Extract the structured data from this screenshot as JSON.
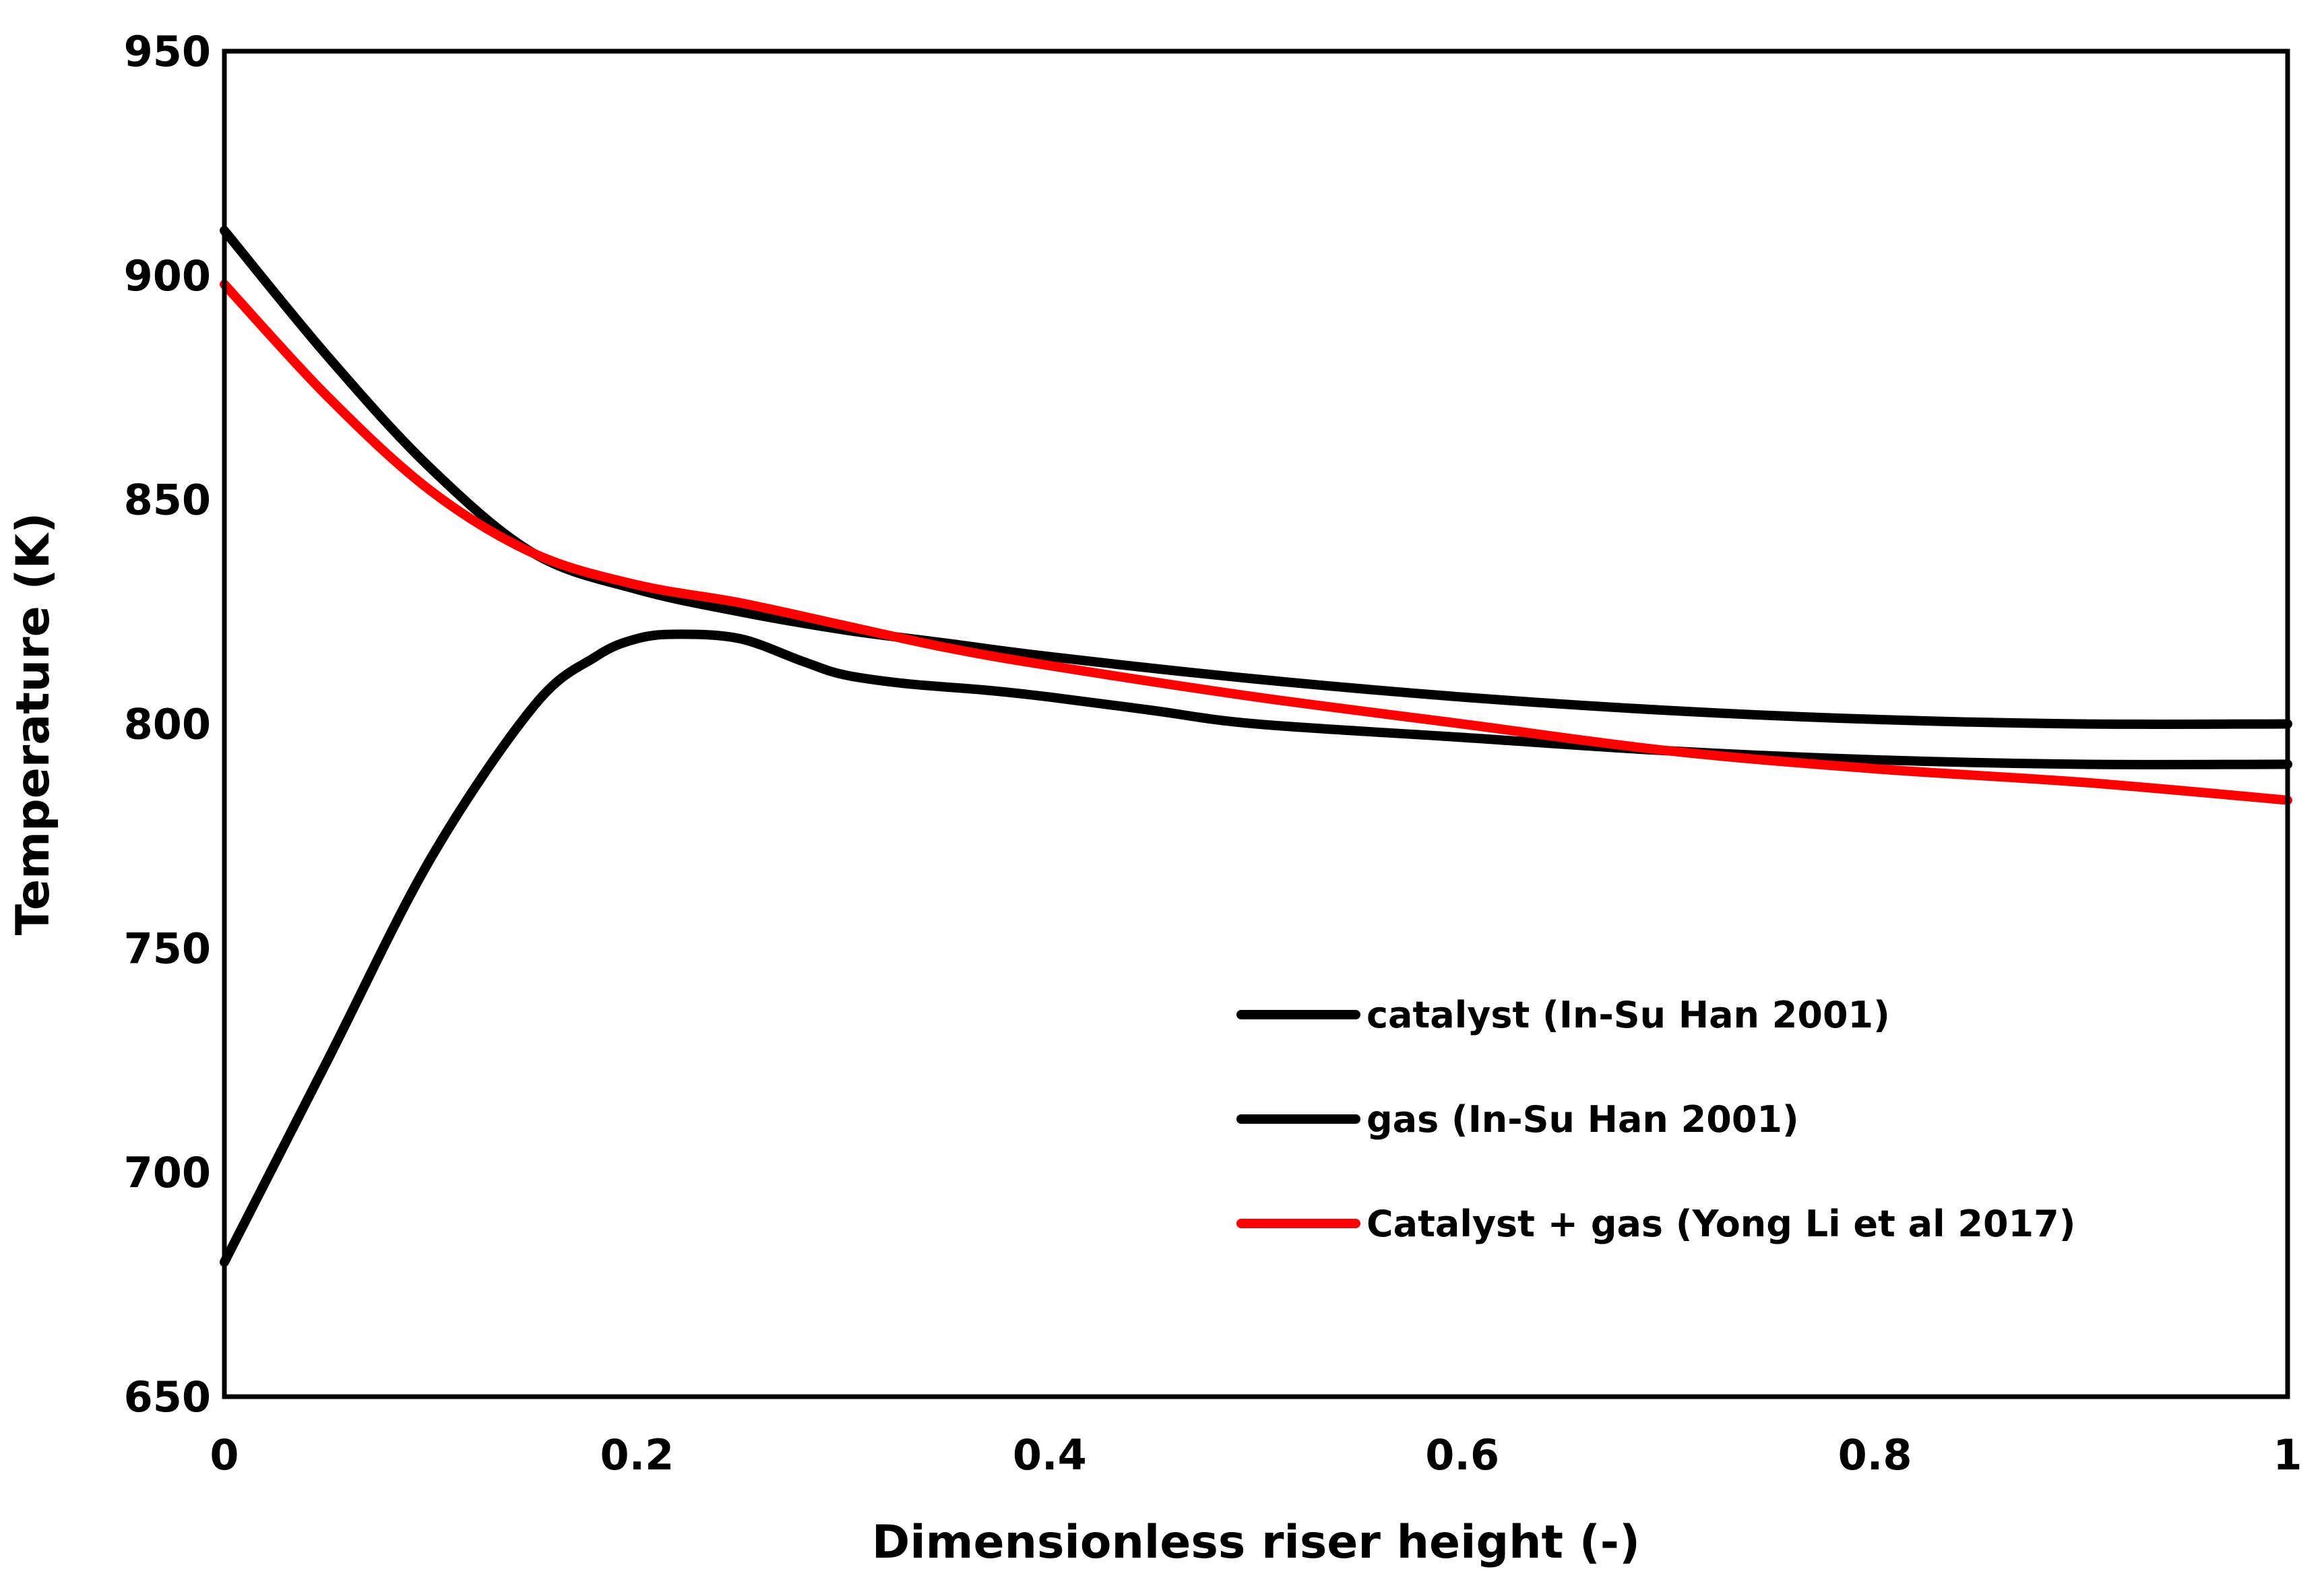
{
  "chart_data": {
    "type": "line",
    "title": "",
    "xlabel": "Dimensionless riser height (-)",
    "ylabel": "Temperature (K)",
    "xlim": [
      0,
      1
    ],
    "ylim": [
      650,
      950
    ],
    "x_ticks": [
      0,
      0.2,
      0.4,
      0.6,
      0.8,
      1
    ],
    "x_tick_labels": [
      "0",
      "0.2",
      "0.4",
      "0.6",
      "0.8",
      "1"
    ],
    "y_ticks": [
      650,
      700,
      750,
      800,
      850,
      900,
      950
    ],
    "y_tick_labels": [
      "650",
      "700",
      "750",
      "800",
      "850",
      "900",
      "950"
    ],
    "grid": false,
    "legend_position": "center-right",
    "series": [
      {
        "name": "catalyst (In-Su Han 2001)",
        "color": "#000000",
        "x": [
          0,
          0.05,
          0.1,
          0.15,
          0.2,
          0.25,
          0.3,
          0.35,
          0.4,
          0.5,
          0.6,
          0.7,
          0.8,
          0.9,
          1.0
        ],
        "y": [
          910,
          882,
          857,
          838,
          830,
          825,
          821,
          818,
          815,
          810,
          806,
          803,
          801,
          800,
          800
        ]
      },
      {
        "name": "gas (In-Su Han 2001)",
        "color": "#000000",
        "x": [
          0,
          0.05,
          0.1,
          0.15,
          0.18,
          0.2,
          0.22,
          0.25,
          0.28,
          0.3,
          0.33,
          0.37,
          0.4,
          0.45,
          0.5,
          0.6,
          0.7,
          0.8,
          0.9,
          1.0
        ],
        "y": [
          680,
          725,
          770,
          804,
          815,
          819,
          820,
          819,
          814,
          811,
          809,
          807.5,
          806,
          803,
          800,
          797,
          794,
          792,
          791,
          791
        ]
      },
      {
        "name": "Catalyst + gas (Yong Li et al 2017)",
        "color": "#ff0000",
        "x": [
          0,
          0.05,
          0.1,
          0.15,
          0.2,
          0.25,
          0.3,
          0.35,
          0.4,
          0.5,
          0.6,
          0.7,
          0.8,
          0.9,
          1.0
        ],
        "y": [
          898,
          873,
          852,
          838,
          831,
          827,
          822,
          817,
          813,
          806,
          800,
          794,
          790,
          787,
          783
        ]
      }
    ]
  }
}
